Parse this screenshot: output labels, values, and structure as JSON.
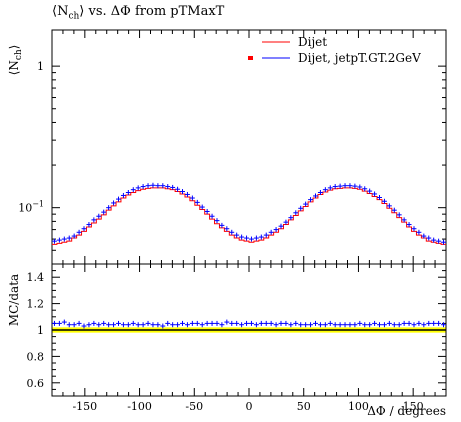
{
  "chart_data": {
    "type": "line",
    "title": "⟨Nch⟩ vs. ΔΦ from pTMaxT",
    "title_parts": {
      "n_open": "⟨N",
      "n_sub": "ch",
      "n_close": "⟩",
      "rest": " vs. ΔΦ from pTMaxT"
    },
    "xlabel": "ΔΦ / degrees",
    "ylabel": "⟨Nch⟩",
    "ylabel_parts": {
      "open": "⟨N",
      "sub": "ch",
      "close": "⟩"
    },
    "ratio_ylabel": "MC/data",
    "xlim": [
      -180,
      180
    ],
    "ylim": [
      0.04,
      1.8
    ],
    "ratio_ylim": [
      0.5,
      1.5
    ],
    "yscale": "log",
    "legend_position": "top-right",
    "x_ticks": [
      -150,
      -100,
      -50,
      0,
      50,
      100,
      150
    ],
    "y_major_ticks": [
      {
        "value": 1,
        "label": "1"
      },
      {
        "value": 0.1,
        "label": "10",
        "exp": "−1"
      }
    ],
    "ratio_ticks": [
      {
        "value": 0.6,
        "label": "0.6"
      },
      {
        "value": 0.8,
        "label": "0.8"
      },
      {
        "value": 1.0,
        "label": "1"
      },
      {
        "value": 1.2,
        "label": "1.2"
      },
      {
        "value": 1.4,
        "label": "1.4"
      }
    ],
    "colors": {
      "reference": "#ff0000",
      "mc": "#0000ff",
      "ratio_band": "#ffff00"
    },
    "series": [
      {
        "name": "Dijet",
        "role": "reference",
        "values": [
          0.055,
          0.056,
          0.057,
          0.058,
          0.061,
          0.064,
          0.068,
          0.073,
          0.078,
          0.083,
          0.089,
          0.096,
          0.103,
          0.11,
          0.117,
          0.123,
          0.128,
          0.132,
          0.135,
          0.137,
          0.138,
          0.138,
          0.138,
          0.136,
          0.134,
          0.13,
          0.125,
          0.119,
          0.112,
          0.104,
          0.097,
          0.09,
          0.083,
          0.077,
          0.072,
          0.068,
          0.064,
          0.061,
          0.059,
          0.058,
          0.057,
          0.058,
          0.059,
          0.061,
          0.064,
          0.067,
          0.071,
          0.076,
          0.082,
          0.088,
          0.095,
          0.102,
          0.11,
          0.117,
          0.124,
          0.129,
          0.133,
          0.136,
          0.137,
          0.138,
          0.138,
          0.137,
          0.135,
          0.131,
          0.126,
          0.12,
          0.114,
          0.107,
          0.099,
          0.092,
          0.085,
          0.079,
          0.073,
          0.068,
          0.064,
          0.061,
          0.058,
          0.057,
          0.056,
          0.055
        ]
      },
      {
        "name": "Dijet, jetpT.GT.2GeV",
        "role": "mc",
        "values": [
          0.058,
          0.059,
          0.06,
          0.061,
          0.063,
          0.067,
          0.071,
          0.076,
          0.082,
          0.087,
          0.093,
          0.1,
          0.108,
          0.115,
          0.122,
          0.128,
          0.134,
          0.138,
          0.141,
          0.143,
          0.144,
          0.143,
          0.143,
          0.141,
          0.139,
          0.135,
          0.13,
          0.124,
          0.117,
          0.109,
          0.101,
          0.094,
          0.087,
          0.081,
          0.075,
          0.071,
          0.067,
          0.064,
          0.062,
          0.061,
          0.06,
          0.061,
          0.062,
          0.064,
          0.067,
          0.07,
          0.074,
          0.079,
          0.085,
          0.092,
          0.099,
          0.106,
          0.114,
          0.121,
          0.128,
          0.134,
          0.138,
          0.141,
          0.142,
          0.143,
          0.143,
          0.142,
          0.14,
          0.136,
          0.131,
          0.125,
          0.118,
          0.111,
          0.103,
          0.096,
          0.089,
          0.082,
          0.076,
          0.071,
          0.067,
          0.063,
          0.061,
          0.059,
          0.058,
          0.057
        ]
      }
    ],
    "ratio_values": [
      1.05,
      1.05,
      1.06,
      1.04,
      1.04,
      1.05,
      1.03,
      1.04,
      1.05,
      1.04,
      1.05,
      1.04,
      1.04,
      1.05,
      1.04,
      1.04,
      1.05,
      1.04,
      1.04,
      1.05,
      1.04,
      1.04,
      1.03,
      1.05,
      1.04,
      1.04,
      1.05,
      1.04,
      1.05,
      1.05,
      1.04,
      1.05,
      1.05,
      1.05,
      1.04,
      1.06,
      1.05,
      1.05,
      1.04,
      1.05,
      1.05,
      1.04,
      1.05,
      1.05,
      1.05,
      1.04,
      1.05,
      1.05,
      1.04,
      1.05,
      1.04,
      1.04,
      1.04,
      1.05,
      1.04,
      1.04,
      1.05,
      1.04,
      1.04,
      1.04,
      1.04,
      1.04,
      1.05,
      1.04,
      1.04,
      1.05,
      1.04,
      1.04,
      1.05,
      1.04,
      1.04,
      1.05,
      1.05,
      1.04,
      1.05,
      1.04,
      1.05,
      1.05,
      1.05,
      1.04
    ]
  }
}
